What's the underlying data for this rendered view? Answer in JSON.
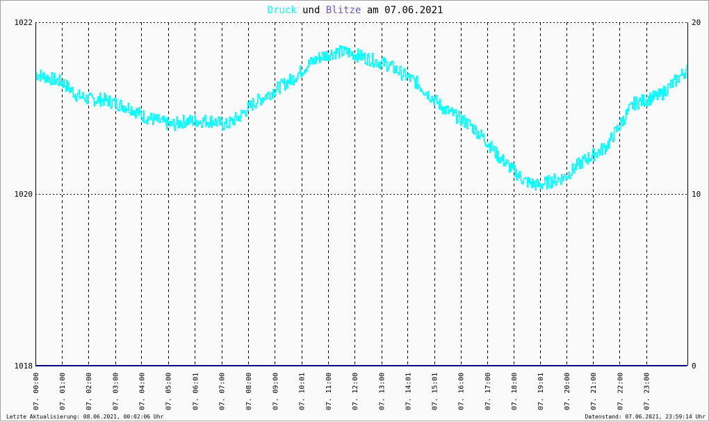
{
  "title": {
    "part1": "Druck",
    "part2": " und ",
    "part3": "Blitze",
    "part4": " am 07.06.2021",
    "color1": "#00ffff",
    "color2": "#000000",
    "color3": "#6a5acd",
    "color4": "#000000"
  },
  "footer": {
    "left": "Letzte Aktualisierung: 08.06.2021, 00:02:06 Uhr",
    "right": "Datenstand: 07.06.2021, 23:59:14 Uhr"
  },
  "chart_data": {
    "type": "line",
    "xlim": [
      0,
      24
    ],
    "y_left": {
      "range": [
        1018,
        1022
      ],
      "ticks": [
        1018,
        1020,
        1022
      ]
    },
    "y_right": {
      "range": [
        0,
        20
      ],
      "ticks": [
        0,
        10,
        20
      ]
    },
    "x_tick_labels": [
      "07. 00:00",
      "07. 01:00",
      "07. 02:00",
      "07. 03:00",
      "07. 04:00",
      "07. 05:00",
      "07. 06:01",
      "07. 07:00",
      "07. 08:00",
      "07. 09:00",
      "07. 10:01",
      "07. 11:00",
      "07. 12:00",
      "07. 13:00",
      "07. 14:01",
      "07. 15:01",
      "07. 16:00",
      "07. 17:00",
      "07. 18:00",
      "07. 19:01",
      "07. 20:00",
      "07. 21:00",
      "07. 22:00",
      "07. 23:00"
    ],
    "x_tick_hours": [
      0.0,
      0.97,
      1.95,
      2.93,
      3.9,
      4.88,
      5.87,
      6.85,
      7.83,
      8.81,
      9.79,
      10.77,
      11.75,
      12.73,
      13.7,
      14.68,
      15.65,
      16.63,
      17.6,
      18.57,
      19.55,
      20.52,
      21.5,
      22.48
    ],
    "grid": true,
    "series": [
      {
        "name": "Druck",
        "axis": "left",
        "color": "#00ffff",
        "x": [
          0,
          0.5,
          1.0,
          1.5,
          2.0,
          2.5,
          3.0,
          3.5,
          4.0,
          4.5,
          5.0,
          5.5,
          6.0,
          6.5,
          7.0,
          7.5,
          8.0,
          8.5,
          9.0,
          9.5,
          10.0,
          10.5,
          11.0,
          11.5,
          12.0,
          12.5,
          13.0,
          13.5,
          14.0,
          14.5,
          15.0,
          15.5,
          16.0,
          16.5,
          17.0,
          17.5,
          18.0,
          18.5,
          19.0,
          19.5,
          20.0,
          20.5,
          21.0,
          21.5,
          22.0,
          22.5,
          23.0,
          23.5,
          23.99
        ],
        "y": [
          1021.4,
          1021.35,
          1021.3,
          1021.15,
          1021.1,
          1021.1,
          1021.05,
          1021.0,
          1020.9,
          1020.85,
          1020.8,
          1020.85,
          1020.85,
          1020.85,
          1020.8,
          1020.9,
          1021.05,
          1021.15,
          1021.25,
          1021.35,
          1021.5,
          1021.6,
          1021.65,
          1021.65,
          1021.6,
          1021.55,
          1021.5,
          1021.4,
          1021.3,
          1021.15,
          1021.0,
          1020.9,
          1020.8,
          1020.65,
          1020.45,
          1020.3,
          1020.15,
          1020.1,
          1020.15,
          1020.2,
          1020.35,
          1020.45,
          1020.55,
          1020.8,
          1021.05,
          1021.1,
          1021.15,
          1021.3,
          1021.45
        ],
        "noise_band": 0.08
      },
      {
        "name": "Blitze",
        "axis": "right",
        "color": "#000080",
        "x": [
          0,
          23.99
        ],
        "y": [
          0,
          0
        ]
      }
    ]
  }
}
